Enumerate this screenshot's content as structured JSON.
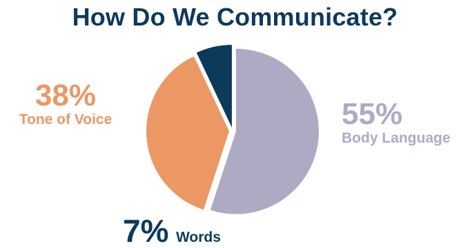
{
  "colors": {
    "title": "#0e3a5b",
    "body_language": "#aeaac4",
    "tone_of_voice": "#eb9865",
    "words": "#0b3a5a"
  },
  "chart_data": {
    "type": "pie",
    "title": "How Do We Communicate?",
    "slices": [
      {
        "label": "Body Language",
        "value": 55,
        "display": "55%"
      },
      {
        "label": "Tone of Voice",
        "value": 38,
        "display": "38%"
      },
      {
        "label": "Words",
        "value": 7,
        "display": "7%"
      }
    ]
  }
}
